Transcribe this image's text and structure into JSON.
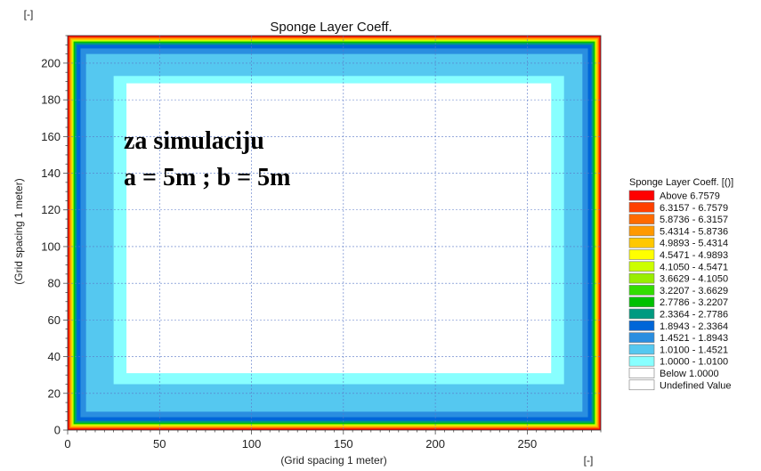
{
  "chart_data": {
    "type": "heatmap",
    "title": "Sponge Layer Coeff.",
    "xlabel": "(Grid spacing 1 meter)",
    "ylabel": "(Grid spacing 1 meter)",
    "x_unit": "[-]",
    "y_unit": "[-]",
    "xlim": [
      0,
      290
    ],
    "ylim": [
      0,
      215
    ],
    "xticks": [
      "0",
      "50",
      "100",
      "150",
      "200",
      "250"
    ],
    "yticks": [
      "0",
      "20",
      "40",
      "60",
      "80",
      "100",
      "120",
      "140",
      "160",
      "180",
      "200"
    ],
    "grid": true,
    "legend_position": "right",
    "legend": {
      "title": "Sponge Layer Coeff. [()]",
      "entries": [
        {
          "label": "Above   6.7579",
          "color": "#ff0000"
        },
        {
          "label": "6.3157 - 6.7579",
          "color": "#ff4000"
        },
        {
          "label": "5.8736 - 6.3157",
          "color": "#ff6a00"
        },
        {
          "label": "5.4314 - 5.8736",
          "color": "#ff9900"
        },
        {
          "label": "4.9893 - 5.4314",
          "color": "#ffc800"
        },
        {
          "label": "4.5471 - 4.9893",
          "color": "#ffff00"
        },
        {
          "label": "4.1050 - 4.5471",
          "color": "#ccff00"
        },
        {
          "label": "3.6629 - 4.1050",
          "color": "#99ee00"
        },
        {
          "label": "3.2207 - 3.6629",
          "color": "#33dd00"
        },
        {
          "label": "2.7786 - 3.2207",
          "color": "#00c000"
        },
        {
          "label": "2.3364 - 2.7786",
          "color": "#009a80"
        },
        {
          "label": "1.8943 - 2.3364",
          "color": "#0066d8"
        },
        {
          "label": "1.4521 - 1.8943",
          "color": "#2a8ee0"
        },
        {
          "label": "1.0100 - 1.4521",
          "color": "#55c8f0"
        },
        {
          "label": "1.0000 - 1.0100",
          "color": "#88ffff"
        },
        {
          "label": "Below    1.0000",
          "color": "#ffffff"
        },
        {
          "label": "Undefined Value",
          "color": "#ffffff"
        }
      ]
    },
    "regions": [
      {
        "x0": 0,
        "x1": 290,
        "y0": 0,
        "y1": 215,
        "color": "#ff0000"
      },
      {
        "x0": 0.8,
        "x1": 289.2,
        "y0": 0.8,
        "y1": 214.2,
        "color": "#ff6a00"
      },
      {
        "x0": 1.6,
        "x1": 288.4,
        "y0": 1.6,
        "y1": 213.4,
        "color": "#ffc800"
      },
      {
        "x0": 2.4,
        "x1": 287.6,
        "y0": 2.4,
        "y1": 212.6,
        "color": "#ccff00"
      },
      {
        "x0": 3.2,
        "x1": 286.8,
        "y0": 3.2,
        "y1": 211.8,
        "color": "#00c000"
      },
      {
        "x0": 4.0,
        "x1": 286.0,
        "y0": 4.0,
        "y1": 211.0,
        "color": "#009a80"
      },
      {
        "x0": 5.0,
        "x1": 285.0,
        "y0": 5.0,
        "y1": 210.0,
        "color": "#0066d8"
      },
      {
        "x0": 7.0,
        "x1": 283.0,
        "y0": 7.0,
        "y1": 208.0,
        "color": "#2a8ee0"
      },
      {
        "x0": 10.0,
        "x1": 280.0,
        "y0": 10.0,
        "y1": 205.0,
        "color": "#55c8f0"
      },
      {
        "x0": 25.0,
        "x1": 270.0,
        "y0": 25.0,
        "y1": 193.0,
        "color": "#88ffff"
      },
      {
        "x0": 32.0,
        "x1": 263.0,
        "y0": 31.0,
        "y1": 189.0,
        "color": "#ffffff"
      }
    ],
    "annotation": [
      "za simulaciju",
      "a = 5m ; b = 5m"
    ]
  }
}
